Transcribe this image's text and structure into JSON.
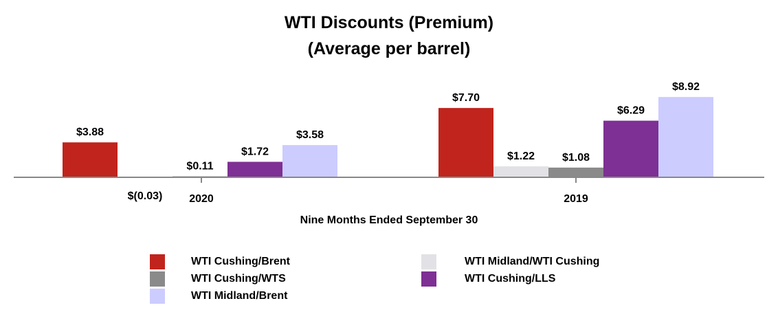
{
  "chart_data": {
    "type": "bar",
    "title": "WTI Discounts (Premium)",
    "subtitle": "(Average per barrel)",
    "xlabel": "Nine Months Ended September 30",
    "categories": [
      "2020",
      "2019"
    ],
    "series": [
      {
        "name": "WTI Cushing/Brent",
        "color": "#c0241c",
        "values": [
          3.88,
          7.7
        ],
        "labels": [
          "$3.88",
          "$7.70"
        ]
      },
      {
        "name": "WTI Midland/WTI Cushing",
        "color": "#e2e2e6",
        "values": [
          -0.03,
          1.22
        ],
        "labels": [
          "$(0.03)",
          "$1.22"
        ]
      },
      {
        "name": "WTI Cushing/WTS",
        "color": "#8a8a8a",
        "values": [
          0.11,
          1.08
        ],
        "labels": [
          "$0.11",
          "$1.08"
        ]
      },
      {
        "name": "WTI Cushing/LLS",
        "color": "#7e3094",
        "values": [
          1.72,
          6.29
        ],
        "labels": [
          "$1.72",
          "$6.29"
        ]
      },
      {
        "name": "WTI Midland/Brent",
        "color": "#ccccff",
        "values": [
          3.58,
          8.92
        ],
        "labels": [
          "$3.58",
          "$8.92"
        ]
      }
    ],
    "legend_placement": "bottom",
    "grid": false
  }
}
